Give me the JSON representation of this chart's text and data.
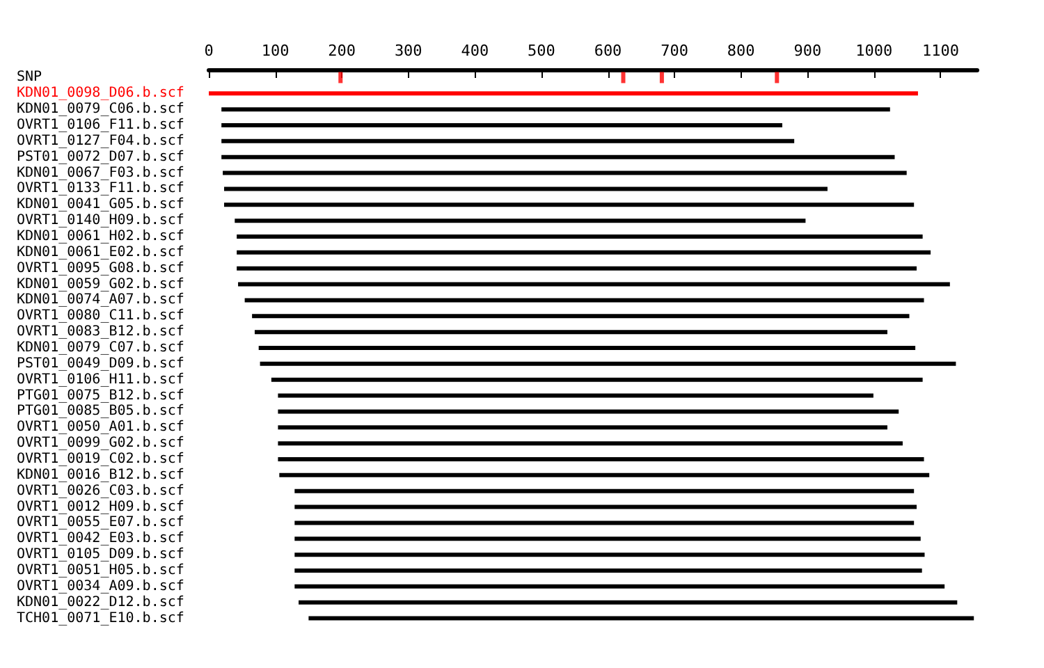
{
  "chart_data": {
    "type": "bar",
    "orientation": "horizontal",
    "grid": false,
    "categories": [
      "SNP",
      "KDN01_0098_D06.b.scf",
      "KDN01_0079_C06.b.scf",
      "OVRT1_0106_F11.b.scf",
      "OVRT1_0127_F04.b.scf",
      "PST01_0072_D07.b.scf",
      "KDN01_0067_F03.b.scf",
      "OVRT1_0133_F11.b.scf",
      "KDN01_0041_G05.b.scf",
      "OVRT1_0140_H09.b.scf",
      "KDN01_0061_H02.b.scf",
      "KDN01_0061_E02.b.scf",
      "OVRT1_0095_G08.b.scf",
      "KDN01_0059_G02.b.scf",
      "KDN01_0074_A07.b.scf",
      "OVRT1_0080_C11.b.scf",
      "OVRT1_0083_B12.b.scf",
      "KDN01_0079_C07.b.scf",
      "PST01_0049_D09.b.scf",
      "OVRT1_0106_H11.b.scf",
      "PTG01_0075_B12.b.scf",
      "PTG01_0085_B05.b.scf",
      "OVRT1_0050_A01.b.scf",
      "OVRT1_0099_G02.b.scf",
      "OVRT1_0019_C02.b.scf",
      "KDN01_0016_B12.b.scf",
      "OVRT1_0026_C03.b.scf",
      "OVRT1_0012_H09.b.scf",
      "OVRT1_0055_E07.b.scf",
      "OVRT1_0042_E03.b.scf",
      "OVRT1_0105_D09.b.scf",
      "OVRT1_0051_H05.b.scf",
      "OVRT1_0034_A09.b.scf",
      "KDN01_0022_D12.b.scf",
      "TCH01_0071_E10.b.scf"
    ],
    "xlim": [
      0,
      1155
    ],
    "xticks": [
      0,
      100,
      200,
      300,
      400,
      500,
      600,
      700,
      800,
      900,
      1000,
      1100
    ],
    "series": [
      {
        "base": [
          null,
          0,
          19,
          19,
          19,
          19,
          21,
          23,
          23,
          39,
          42,
          42,
          42,
          44,
          54,
          65,
          69,
          75,
          77,
          94,
          104,
          104,
          104,
          104,
          104,
          106,
          129,
          129,
          129,
          129,
          129,
          129,
          129,
          135,
          150
        ],
        "values": [
          null,
          1066,
          1005,
          843,
          861,
          1012,
          1028,
          907,
          1037,
          858,
          1031,
          1043,
          1022,
          1070,
          1021,
          988,
          951,
          987,
          1046,
          979,
          895,
          933,
          916,
          939,
          971,
          977,
          931,
          935,
          931,
          941,
          947,
          943,
          977,
          990,
          1000
        ],
        "colors": [
          "#000000",
          "#ff0000",
          "#000000",
          "#000000",
          "#000000",
          "#000000",
          "#000000",
          "#000000",
          "#000000",
          "#000000",
          "#000000",
          "#000000",
          "#000000",
          "#000000",
          "#000000",
          "#000000",
          "#000000",
          "#000000",
          "#000000",
          "#000000",
          "#000000",
          "#000000",
          "#000000",
          "#000000",
          "#000000",
          "#000000",
          "#000000",
          "#000000",
          "#000000",
          "#000000",
          "#000000",
          "#000000",
          "#000000",
          "#000000",
          "#000000"
        ]
      },
      {
        "type": "scatter",
        "marker": "square",
        "color": "#ff0000",
        "x": [
          "SNP",
          "SNP",
          "SNP",
          "SNP"
        ],
        "values": [
          198,
          623,
          681,
          854
        ]
      }
    ]
  }
}
